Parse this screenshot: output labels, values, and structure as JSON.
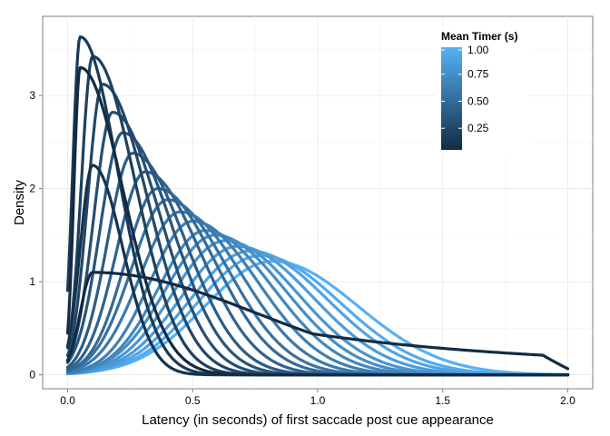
{
  "chart_data": {
    "type": "line",
    "title": "",
    "xlabel": "Latency (in seconds) of first saccade post cue appearance",
    "ylabel": "Density",
    "xlim": [
      -0.1,
      2.1
    ],
    "ylim": [
      -0.15,
      3.85
    ],
    "x_ticks": [
      0.0,
      0.5,
      1.0,
      1.5,
      2.0
    ],
    "x_tick_labels": [
      "0.0",
      "0.5",
      "1.0",
      "1.5",
      "2.0"
    ],
    "y_ticks": [
      0,
      1,
      2,
      3
    ],
    "y_tick_labels": [
      "0",
      "1",
      "2",
      "3"
    ],
    "grid": true,
    "legend": {
      "title": "Mean Timer (s)",
      "placement": "top-right",
      "type": "colorbar",
      "range": [
        0.05,
        1.0
      ],
      "ticks": [
        0.25,
        0.5,
        0.75,
        1.0
      ],
      "tick_labels": [
        "0.25",
        "0.50",
        "0.75",
        "1.00"
      ],
      "color_low": "#132B43",
      "color_high": "#56B1F7"
    },
    "series": [
      {
        "timer": 0.05,
        "mode": 0.05,
        "peak": 3.3,
        "s1": 0.025,
        "s2": 0.17,
        "x0": 0.0
      },
      {
        "timer": 0.1,
        "mode": 0.1,
        "peak": 2.25,
        "s1": 0.05,
        "s2": 0.12,
        "x0": 0.0
      },
      {
        "timer": 0.15,
        "mode": 0.05,
        "peak": 3.63,
        "s1": 0.03,
        "s2": 0.15,
        "x0": 0.0
      },
      {
        "timer": 0.2,
        "mode": 0.1,
        "peak": 3.42,
        "s1": 0.045,
        "s2": 0.17,
        "x0": 0.0
      },
      {
        "timer": 0.25,
        "mode": 0.14,
        "peak": 3.12,
        "s1": 0.06,
        "s2": 0.18,
        "x0": 0.0
      },
      {
        "timer": 0.3,
        "mode": 0.18,
        "peak": 2.82,
        "s1": 0.075,
        "s2": 0.19,
        "x0": 0.0
      },
      {
        "timer": 0.35,
        "mode": 0.22,
        "peak": 2.6,
        "s1": 0.09,
        "s2": 0.2,
        "x0": 0.0
      },
      {
        "timer": 0.4,
        "mode": 0.26,
        "peak": 2.38,
        "s1": 0.1,
        "s2": 0.21,
        "x0": 0.0
      },
      {
        "timer": 0.45,
        "mode": 0.31,
        "peak": 2.18,
        "s1": 0.115,
        "s2": 0.22,
        "x0": 0.0
      },
      {
        "timer": 0.5,
        "mode": 0.36,
        "peak": 2.0,
        "s1": 0.13,
        "s2": 0.23,
        "x0": 0.0
      },
      {
        "timer": 0.55,
        "mode": 0.4,
        "peak": 1.88,
        "s1": 0.145,
        "s2": 0.24,
        "x0": 0.0
      },
      {
        "timer": 0.6,
        "mode": 0.45,
        "peak": 1.75,
        "s1": 0.16,
        "s2": 0.25,
        "x0": 0.0
      },
      {
        "timer": 0.65,
        "mode": 0.5,
        "peak": 1.65,
        "s1": 0.17,
        "s2": 0.26,
        "x0": 0.0
      },
      {
        "timer": 0.7,
        "mode": 0.55,
        "peak": 1.55,
        "s1": 0.185,
        "s2": 0.27,
        "x0": 0.0
      },
      {
        "timer": 0.75,
        "mode": 0.59,
        "peak": 1.5,
        "s1": 0.2,
        "s2": 0.28,
        "x0": 0.0
      },
      {
        "timer": 0.8,
        "mode": 0.63,
        "peak": 1.44,
        "s1": 0.21,
        "s2": 0.29,
        "x0": 0.0
      },
      {
        "timer": 0.85,
        "mode": 0.68,
        "peak": 1.38,
        "s1": 0.225,
        "s2": 0.3,
        "x0": 0.0
      },
      {
        "timer": 0.9,
        "mode": 0.73,
        "peak": 1.33,
        "s1": 0.24,
        "s2": 0.31,
        "x0": 0.0
      },
      {
        "timer": 0.95,
        "mode": 0.77,
        "peak": 1.28,
        "s1": 0.25,
        "s2": 0.32,
        "x0": 0.0
      },
      {
        "timer": 1.0,
        "mode": 0.82,
        "peak": 1.22,
        "s1": 0.27,
        "s2": 0.34,
        "x0": 0.0
      },
      {
        "timer": 0.05,
        "mode": 0.1,
        "peak": 1.1,
        "s1": 0.05,
        "s2": 0.65,
        "x0": 0.0,
        "tail": 0.07
      }
    ]
  }
}
